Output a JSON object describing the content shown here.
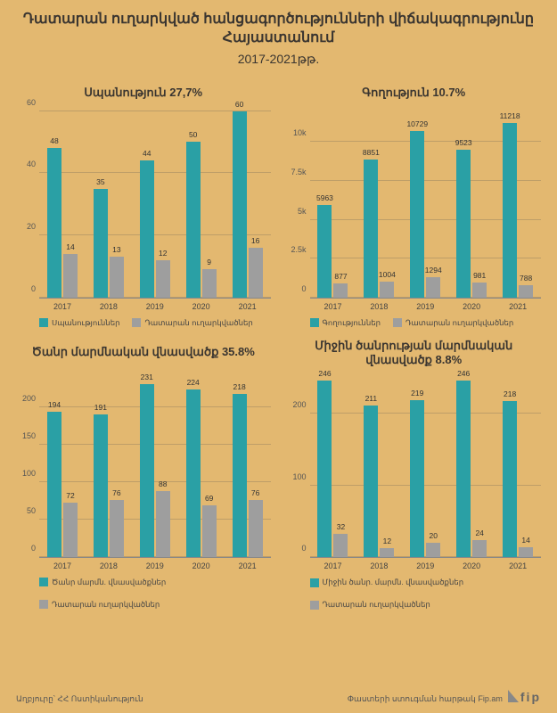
{
  "colors": {
    "bg": "#e3b870",
    "series1": "#2aa0a5",
    "series2": "#9e9e9e",
    "grid": "rgba(120,110,90,0.35)",
    "text": "#3a3530"
  },
  "header": {
    "title": "Դատարան ուղարկված հանցագործությունների վիճակագրությունը Հայաստանում",
    "subtitle": "2017-2021թթ."
  },
  "categories": [
    "2017",
    "2018",
    "2019",
    "2020",
    "2021"
  ],
  "panels": [
    {
      "title": "Սպանություն   27,7%",
      "ymax": 60,
      "yticks": [
        0,
        20,
        40,
        60
      ],
      "series": [
        {
          "name": "Սպանություններ",
          "color": "#2aa0a5",
          "values": [
            48,
            35,
            44,
            50,
            60
          ]
        },
        {
          "name": "Դատարան ուղարկվածներ",
          "color": "#9e9e9e",
          "values": [
            14,
            13,
            12,
            9,
            16
          ]
        }
      ]
    },
    {
      "title": "Գողություն   10.7%",
      "ymax": 12000,
      "yticks": [
        0,
        2500,
        5000,
        7500,
        10000
      ],
      "ytick_labels": [
        "0",
        "2.5k",
        "5k",
        "7.5k",
        "10k"
      ],
      "series": [
        {
          "name": "Գողություններ",
          "color": "#2aa0a5",
          "values": [
            5963,
            8851,
            10729,
            9523,
            11218
          ]
        },
        {
          "name": "Դատարան ուղարկվածներ",
          "color": "#9e9e9e",
          "values": [
            877,
            1004,
            1294,
            981,
            788
          ]
        }
      ]
    },
    {
      "title": "Ծանր մարմնական վնասվածք 35.8%",
      "ymax": 250,
      "yticks": [
        0,
        50,
        100,
        150,
        200
      ],
      "series": [
        {
          "name": "Ծանր մարմն. վնասվածքներ",
          "color": "#2aa0a5",
          "values": [
            194,
            191,
            231,
            224,
            218
          ]
        },
        {
          "name": "Դատարան ուղարկվածներ",
          "color": "#9e9e9e",
          "values": [
            72,
            76,
            88,
            69,
            76
          ]
        }
      ]
    },
    {
      "title": "Միջին ծանրության մարմնական վնասվածք 8.8%",
      "ymax": 260,
      "yticks": [
        0,
        100,
        200
      ],
      "series": [
        {
          "name": "Միջին ծանր. մարմն. վնասվածքներ",
          "color": "#2aa0a5",
          "values": [
            246,
            211,
            219,
            246,
            218
          ]
        },
        {
          "name": "Դատարան ուղարկվածներ",
          "color": "#9e9e9e",
          "values": [
            32,
            12,
            20,
            24,
            14
          ]
        }
      ]
    }
  ],
  "footer": {
    "source": "Աղբյուրը՝ ՀՀ Ոստիկանություն",
    "credit": "Փաստերի ստուգման հարթակ Fip.am",
    "logo": "fip"
  }
}
